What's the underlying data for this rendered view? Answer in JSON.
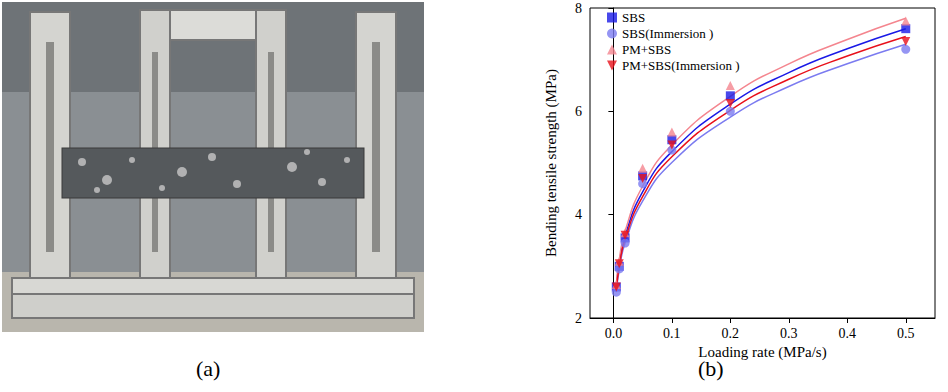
{
  "panel_labels": [
    "(a)",
    "(b)"
  ],
  "chart_data": {
    "type": "scatter",
    "x_label": "Loading rate (MPa/s)",
    "y_label": "Bending tensile strength (MPa)",
    "x": [
      0.005,
      0.01,
      0.02,
      0.05,
      0.1,
      0.2,
      0.5
    ],
    "fit_x": [
      0.005,
      0.01,
      0.02,
      0.05,
      0.1,
      0.2,
      0.3,
      0.4,
      0.5
    ],
    "series": [
      {
        "name": "SBS",
        "color": "#1a1ae6",
        "marker": "square",
        "values": [
          2.6,
          3.0,
          3.55,
          4.75,
          5.45,
          6.3,
          7.6
        ],
        "fit_values": [
          2.6,
          3.05,
          3.59,
          4.44,
          5.22,
          6.14,
          6.75,
          7.21,
          7.6
        ]
      },
      {
        "name": "SBS(Immersion )",
        "color": "#7b7bf0",
        "marker": "circle",
        "values": [
          2.5,
          2.95,
          3.45,
          4.6,
          5.25,
          6.0,
          7.2
        ],
        "fit_values": [
          2.5,
          2.93,
          3.45,
          4.26,
          5.01,
          5.89,
          6.48,
          6.92,
          7.3
        ]
      },
      {
        "name": "PM+SBS",
        "color": "#f4858e",
        "marker": "triangle-up",
        "values": [
          2.65,
          3.1,
          3.65,
          4.9,
          5.6,
          6.5,
          7.75
        ],
        "fit_values": [
          2.66,
          3.13,
          3.68,
          4.55,
          5.35,
          6.29,
          6.92,
          7.39,
          7.8
        ]
      },
      {
        "name": "PM+SBS(Immersion )",
        "color": "#e8101a",
        "marker": "triangle-down",
        "values": [
          2.6,
          3.05,
          3.6,
          4.7,
          5.35,
          6.15,
          7.35
        ],
        "fit_values": [
          2.55,
          2.99,
          3.52,
          4.35,
          5.12,
          6.02,
          6.62,
          7.07,
          7.45
        ]
      }
    ],
    "xlim": [
      -0.04,
      0.55
    ],
    "xticks": [
      {
        "value": 0,
        "label": "0.0"
      },
      0.1,
      0.2,
      0.3,
      0.4,
      0.5
    ],
    "ylim": [
      2,
      8
    ],
    "yticks": [
      2,
      4,
      6,
      8
    ],
    "grid": false,
    "legend": "top-left"
  }
}
